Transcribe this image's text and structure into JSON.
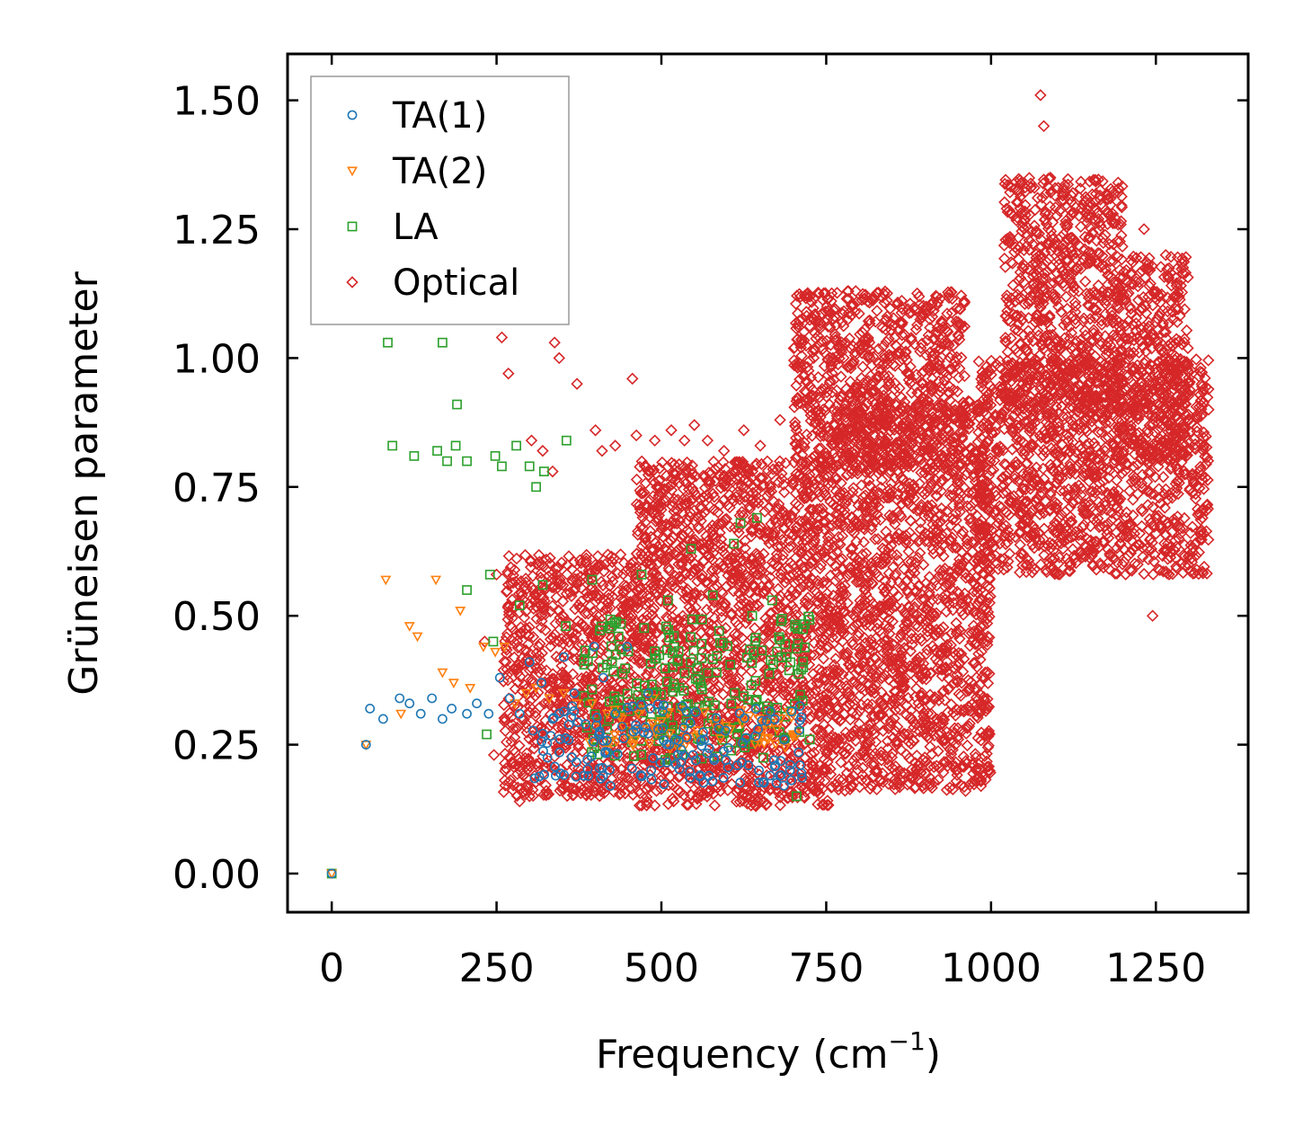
{
  "chart_data": {
    "type": "scatter",
    "title": "",
    "xlabel": "Frequency (cm",
    "xlabel_sup": "−1",
    "xlabel_end": ")",
    "ylabel": "Grüneisen parameter",
    "xlim": [
      -67,
      1390
    ],
    "ylim": [
      -0.075,
      1.59
    ],
    "xticks": [
      0,
      250,
      500,
      750,
      1000,
      1250
    ],
    "xtick_labels": [
      "0",
      "250",
      "500",
      "750",
      "1000",
      "1250"
    ],
    "yticks": [
      0.0,
      0.25,
      0.5,
      0.75,
      1.0,
      1.25,
      1.5
    ],
    "ytick_labels": [
      "0.00",
      "0.25",
      "0.50",
      "0.75",
      "1.00",
      "1.25",
      "1.50"
    ],
    "grid": false,
    "legend_position": "top-left",
    "series": [
      {
        "name": "TA(1)",
        "marker": "circle",
        "color": "#1f77b4",
        "points": [
          [
            0,
            0
          ],
          [
            52,
            0.25
          ],
          [
            58,
            0.32
          ],
          [
            78,
            0.3
          ],
          [
            103,
            0.34
          ],
          [
            118,
            0.33
          ],
          [
            135,
            0.31
          ],
          [
            152,
            0.34
          ],
          [
            168,
            0.3
          ],
          [
            182,
            0.32
          ],
          [
            205,
            0.31
          ],
          [
            220,
            0.33
          ],
          [
            238,
            0.31
          ],
          [
            255,
            0.38
          ],
          [
            270,
            0.34
          ],
          [
            285,
            0.31
          ],
          [
            300,
            0.41
          ],
          [
            318,
            0.37
          ],
          [
            335,
            0.3
          ],
          [
            352,
            0.42
          ],
          [
            368,
            0.35
          ],
          [
            385,
            0.29
          ],
          [
            398,
            0.44
          ],
          [
            412,
            0.38
          ],
          [
            430,
            0.31
          ],
          [
            448,
            0.44
          ],
          [
            462,
            0.28
          ],
          [
            480,
            0.35
          ],
          [
            495,
            0.28
          ],
          [
            512,
            0.25
          ],
          [
            530,
            0.24
          ],
          [
            548,
            0.23
          ],
          [
            565,
            0.26
          ],
          [
            580,
            0.22
          ],
          [
            598,
            0.22
          ],
          [
            615,
            0.21
          ],
          [
            632,
            0.21
          ],
          [
            648,
            0.2
          ],
          [
            665,
            0.19
          ],
          [
            680,
            0.19
          ],
          [
            695,
            0.2
          ],
          [
            710,
            0.21
          ]
        ],
        "ranges": [
          [
            300,
            715,
            0.17,
            0.33
          ]
        ]
      },
      {
        "name": "TA(2)",
        "marker": "triangle-down",
        "color": "#ff7f0e",
        "points": [
          [
            0,
            0
          ],
          [
            52,
            0.25
          ],
          [
            82,
            0.57
          ],
          [
            105,
            0.31
          ],
          [
            118,
            0.48
          ],
          [
            130,
            0.46
          ],
          [
            158,
            0.57
          ],
          [
            168,
            0.39
          ],
          [
            185,
            0.37
          ],
          [
            195,
            0.51
          ],
          [
            210,
            0.36
          ],
          [
            230,
            0.44
          ],
          [
            248,
            0.43
          ],
          [
            262,
            0.44
          ],
          [
            278,
            0.33
          ],
          [
            295,
            0.35
          ],
          [
            310,
            0.36
          ],
          [
            330,
            0.34
          ],
          [
            352,
            0.35
          ],
          [
            372,
            0.33
          ],
          [
            395,
            0.33
          ],
          [
            418,
            0.31
          ],
          [
            440,
            0.3
          ],
          [
            465,
            0.31
          ],
          [
            488,
            0.34
          ],
          [
            510,
            0.31
          ],
          [
            532,
            0.28
          ],
          [
            556,
            0.27
          ],
          [
            580,
            0.29
          ],
          [
            605,
            0.28
          ],
          [
            625,
            0.3
          ],
          [
            650,
            0.27
          ],
          [
            675,
            0.28
          ],
          [
            700,
            0.27
          ]
        ],
        "ranges": [
          [
            380,
            705,
            0.24,
            0.32
          ]
        ]
      },
      {
        "name": "LA",
        "marker": "square",
        "color": "#2ca02c",
        "points": [
          [
            0,
            0
          ],
          [
            85,
            1.03
          ],
          [
            92,
            0.83
          ],
          [
            125,
            0.81
          ],
          [
            160,
            0.82
          ],
          [
            168,
            1.03
          ],
          [
            175,
            0.8
          ],
          [
            188,
            0.83
          ],
          [
            190,
            0.91
          ],
          [
            205,
            0.8
          ],
          [
            235,
            0.27
          ],
          [
            240,
            0.58
          ],
          [
            248,
            0.81
          ],
          [
            258,
            0.79
          ],
          [
            280,
            0.83
          ],
          [
            300,
            0.79
          ],
          [
            310,
            0.75
          ],
          [
            322,
            0.78
          ],
          [
            356,
            0.84
          ],
          [
            205,
            0.55
          ],
          [
            245,
            0.45
          ],
          [
            285,
            0.52
          ],
          [
            320,
            0.56
          ],
          [
            355,
            0.48
          ],
          [
            395,
            0.57
          ],
          [
            435,
            0.46
          ],
          [
            470,
            0.58
          ],
          [
            510,
            0.53
          ],
          [
            545,
            0.63
          ],
          [
            578,
            0.54
          ],
          [
            610,
            0.64
          ],
          [
            620,
            0.68
          ],
          [
            645,
            0.69
          ],
          [
            668,
            0.53
          ],
          [
            690,
            0.42
          ],
          [
            705,
            0.15
          ],
          [
            715,
            0.4
          ],
          [
            725,
            0.26
          ]
        ],
        "ranges": [
          [
            380,
            725,
            0.22,
            0.5
          ]
        ]
      },
      {
        "name": "Optical",
        "marker": "diamond",
        "color": "#d62728",
        "points": [
          [
            232,
            0.45
          ],
          [
            246,
            0.23
          ],
          [
            250,
            0.58
          ],
          [
            258,
            1.04
          ],
          [
            268,
            0.97
          ],
          [
            285,
            0.14
          ],
          [
            300,
            0.15
          ],
          [
            303,
            0.84
          ],
          [
            320,
            0.82
          ],
          [
            335,
            0.78
          ],
          [
            338,
            1.03
          ],
          [
            345,
            1.0
          ],
          [
            372,
            0.95
          ],
          [
            400,
            0.86
          ],
          [
            410,
            0.82
          ],
          [
            430,
            0.83
          ],
          [
            456,
            0.96
          ],
          [
            462,
            0.85
          ],
          [
            490,
            0.84
          ],
          [
            515,
            0.86
          ],
          [
            535,
            0.84
          ],
          [
            550,
            0.87
          ],
          [
            570,
            0.84
          ],
          [
            595,
            0.82
          ],
          [
            625,
            0.86
          ],
          [
            650,
            0.83
          ],
          [
            680,
            0.88
          ],
          [
            705,
            0.86
          ],
          [
            1002,
            0.88
          ],
          [
            1015,
            0.61
          ],
          [
            1040,
            0.83
          ],
          [
            1075,
            1.51
          ],
          [
            1080,
            1.45
          ],
          [
            1090,
            1.35
          ],
          [
            1110,
            1.22
          ],
          [
            1145,
            0.65
          ],
          [
            1180,
            0.62
          ],
          [
            1205,
            0.69
          ],
          [
            1222,
            1.04
          ],
          [
            1232,
            1.25
          ],
          [
            1245,
            0.5
          ],
          [
            1265,
            0.63
          ],
          [
            1285,
            0.98
          ],
          [
            1300,
            0.95
          ],
          [
            1320,
            0.89
          ],
          [
            1330,
            0.9
          ]
        ],
        "ranges": [
          [
            260,
            460,
            0.15,
            0.62
          ],
          [
            460,
            760,
            0.13,
            0.8
          ],
          [
            760,
            1000,
            0.16,
            0.92
          ],
          [
            980,
            1330,
            0.58,
            1.0
          ],
          [
            1020,
            1200,
            0.9,
            1.35
          ],
          [
            1190,
            1300,
            0.8,
            1.2
          ],
          [
            700,
            960,
            0.78,
            1.13
          ]
        ]
      }
    ]
  }
}
